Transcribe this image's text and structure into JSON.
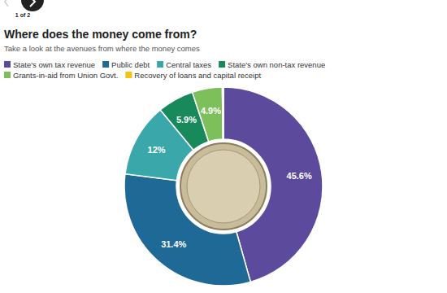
{
  "chart_data": {
    "type": "pie",
    "title": "Where does the money come from?",
    "subtitle": "Take a look at the avenues from where the money comes",
    "annotations": [
      "1 of 2"
    ],
    "categories": [
      "State's own tax revenue",
      "Public debt",
      "Central taxes",
      "State's own non-tax revenue",
      "Grants-in-aid from Union Govt.",
      "Recovery of loans and capital receipt"
    ],
    "values": [
      45.6,
      31.4,
      12,
      5.9,
      4.9,
      0.2
    ],
    "value_labels": [
      "45.6%",
      "31.4%",
      "12%",
      "5.9%",
      "4.9%",
      null
    ],
    "colors": [
      "#5c4a9c",
      "#1f6997",
      "#3aa8aa",
      "#17895a",
      "#7cbf5b",
      "#f2c319"
    ],
    "data_labels": true,
    "legend": "top"
  }
}
